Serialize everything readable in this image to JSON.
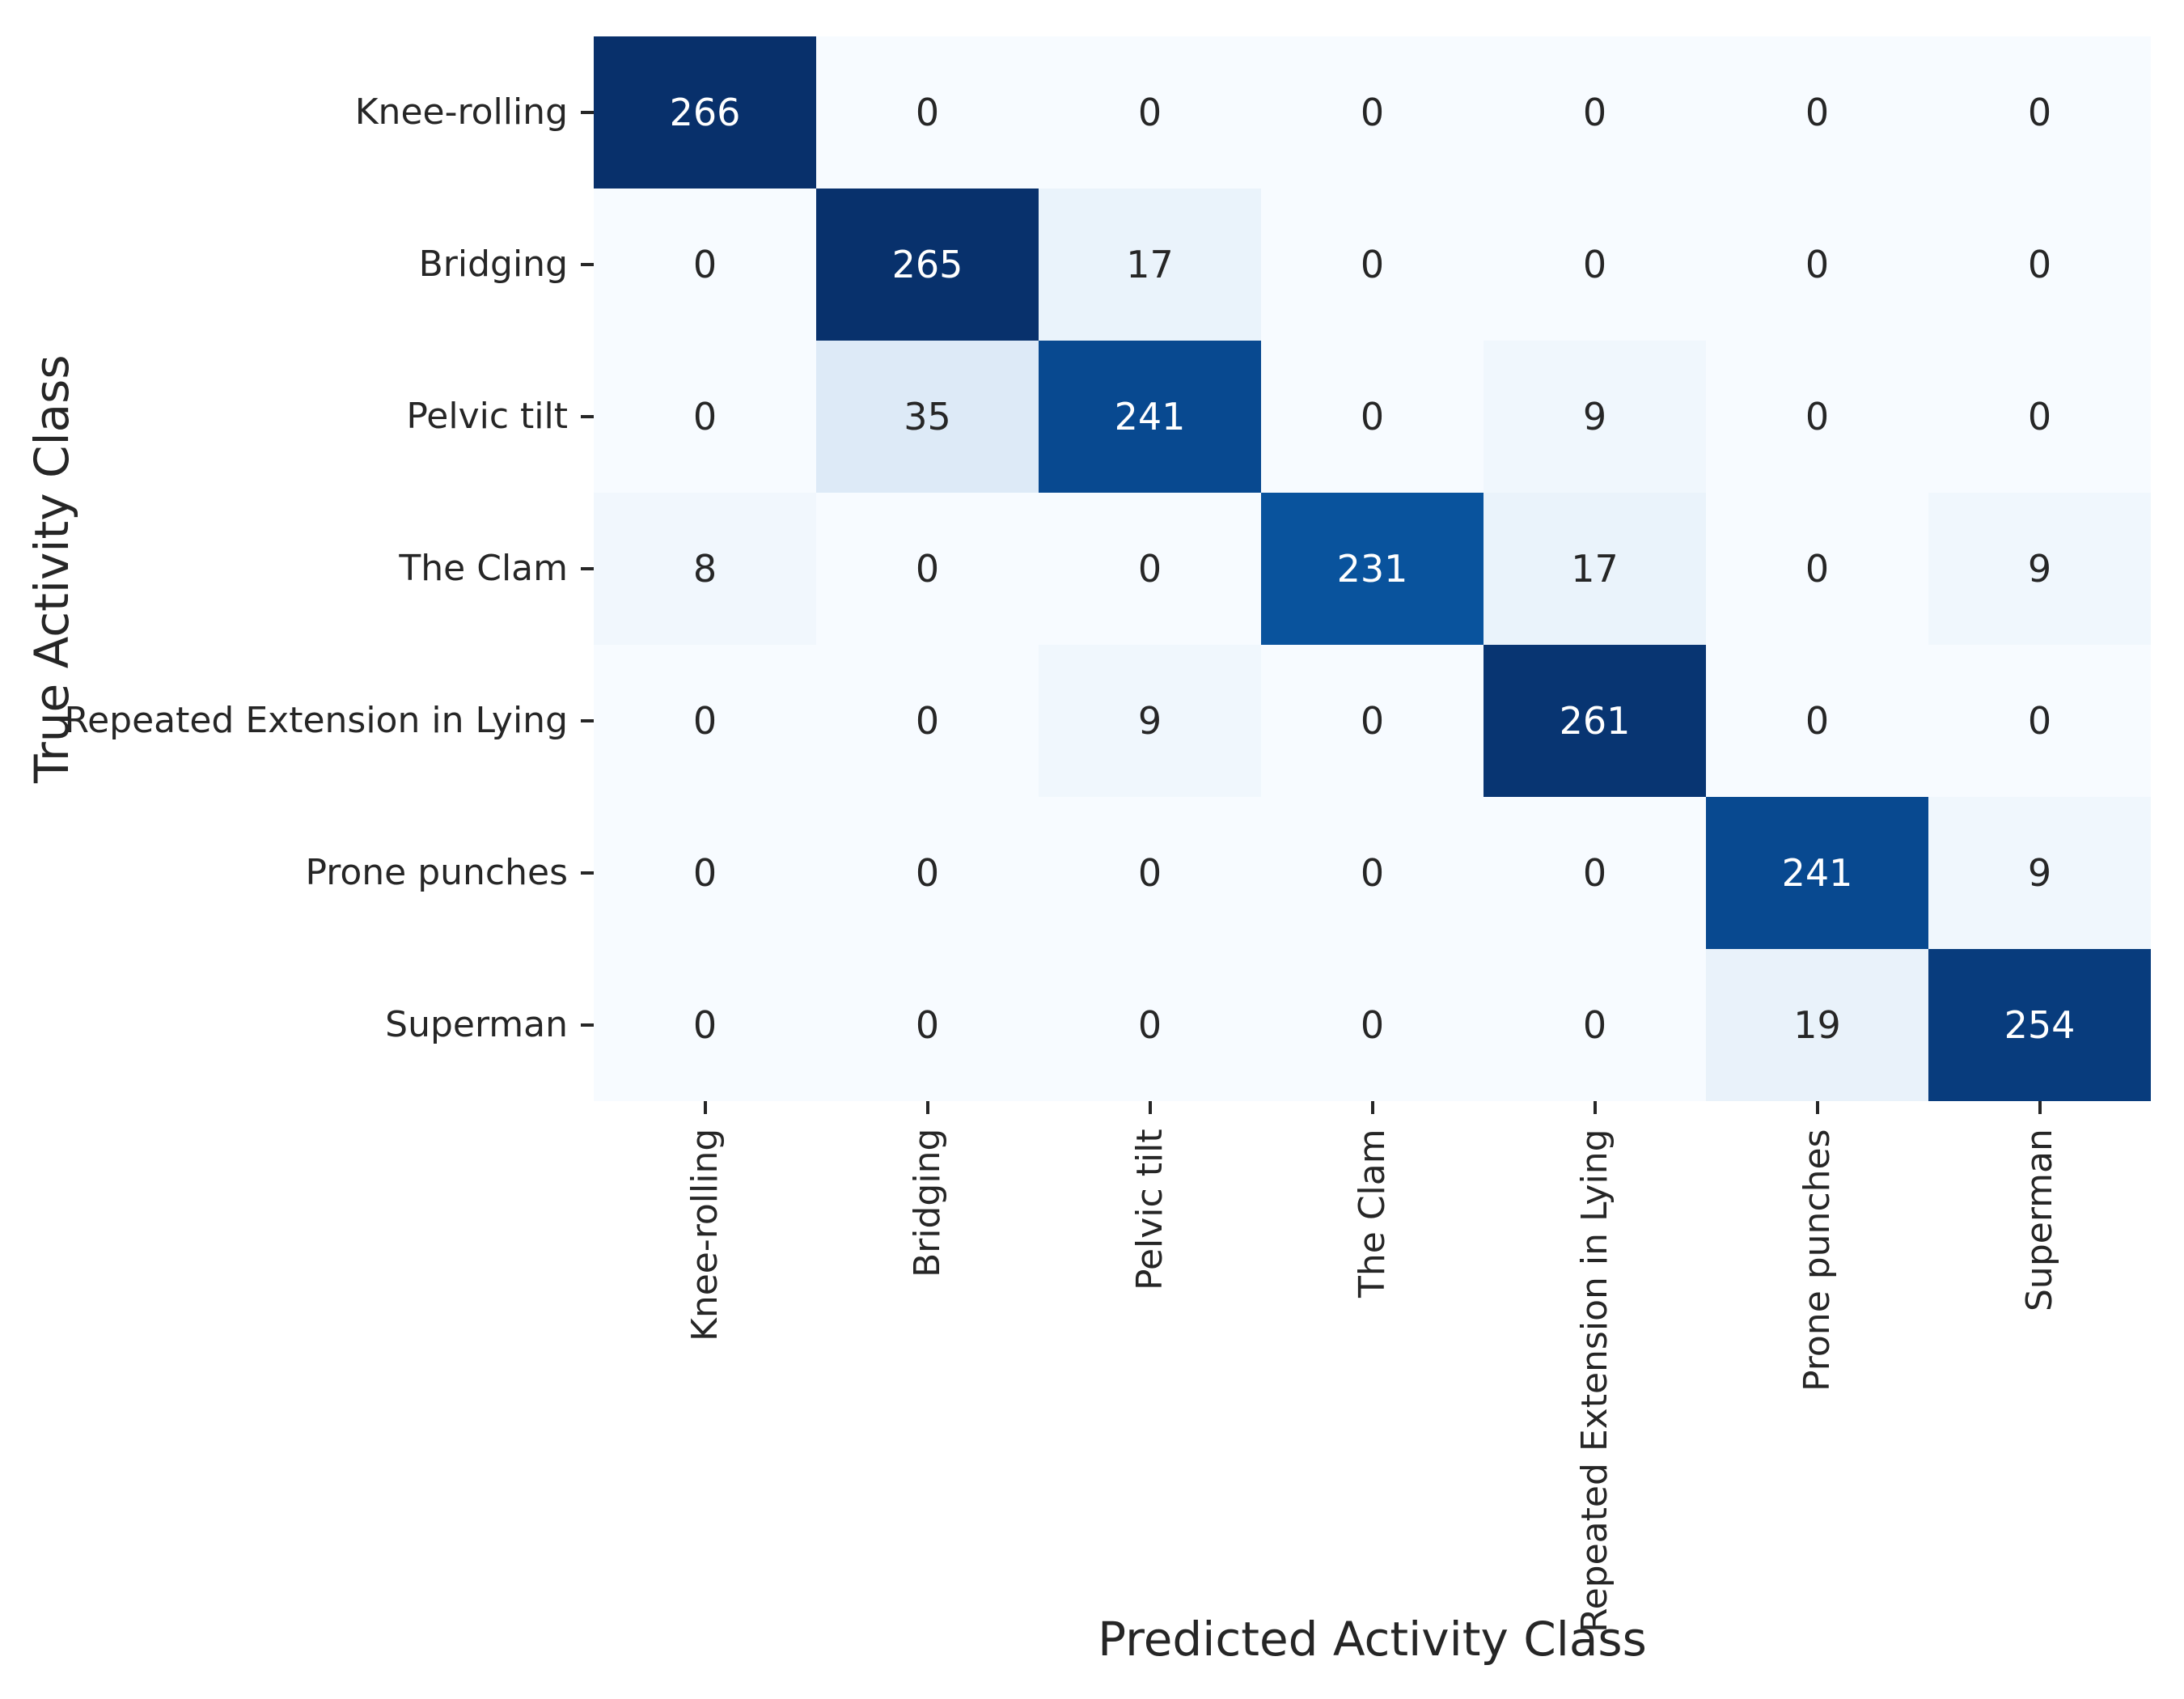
{
  "chart_data": {
    "type": "heatmap",
    "title": "",
    "xlabel": "Predicted Activity Class",
    "ylabel": "True Activity Class",
    "categories": [
      "Knee-rolling",
      "Bridging",
      "Pelvic tilt",
      "The Clam",
      "Repeated Extension in Lying",
      "Prone punches",
      "Superman"
    ],
    "matrix": [
      [
        266,
        0,
        0,
        0,
        0,
        0,
        0
      ],
      [
        0,
        265,
        17,
        0,
        0,
        0,
        0
      ],
      [
        0,
        35,
        241,
        0,
        9,
        0,
        0
      ],
      [
        8,
        0,
        0,
        231,
        17,
        0,
        9
      ],
      [
        0,
        0,
        9,
        0,
        261,
        0,
        0
      ],
      [
        0,
        0,
        0,
        0,
        0,
        241,
        9
      ],
      [
        0,
        0,
        0,
        0,
        0,
        19,
        254
      ]
    ],
    "vmin": 0,
    "vmax": 266,
    "colormap": {
      "name": "Blues",
      "anchors": [
        "#f7fbff",
        "#deebf7",
        "#c6dbef",
        "#9ecae1",
        "#6baed6",
        "#4292c6",
        "#2171b5",
        "#08519c",
        "#08306b"
      ]
    },
    "annotation_colors": {
      "on_light": "#262626",
      "on_dark": "#ffffff"
    },
    "tick_color": "#262626",
    "grid": false,
    "legend_position": "none"
  },
  "layout_values": {
    "note": "confusion matrix of activity classification, no colorbar shown"
  }
}
